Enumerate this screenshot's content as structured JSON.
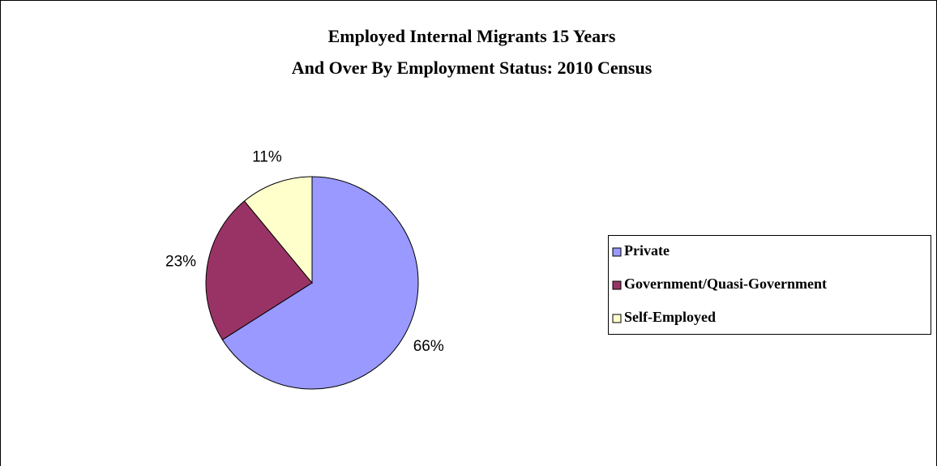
{
  "chart_data": {
    "type": "pie",
    "title": [
      "Employed Internal Migrants 15 Years",
      "And Over By Employment Status:  2010 Census"
    ],
    "categories": [
      "Private",
      "Government/Quasi-Government",
      "Self-Employed"
    ],
    "values": [
      66,
      23,
      11
    ],
    "value_labels": [
      "66%",
      "23%",
      "11%"
    ],
    "colors": [
      "#9999ff",
      "#993366",
      "#ffffcc"
    ],
    "legend": "right"
  }
}
